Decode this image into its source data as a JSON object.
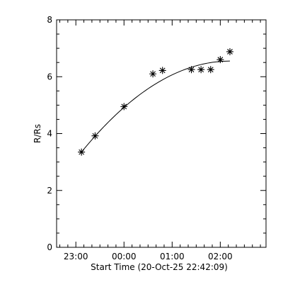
{
  "chart_data": {
    "type": "scatter",
    "xlabel": "Start Time (20-Oct-25 22:42:09)",
    "ylabel": "R/Rs",
    "xlim": [
      "22:36",
      "02:57"
    ],
    "ylim": [
      0,
      8
    ],
    "x_ticks": [
      "23:00",
      "00:00",
      "01:00",
      "02:00"
    ],
    "y_ticks": [
      "0",
      "2",
      "4",
      "6",
      "8"
    ],
    "grid": false,
    "legend": "none",
    "series": [
      {
        "marker": "asterisk",
        "x": [
          "23:07",
          "23:24",
          "00:00",
          "00:36",
          "00:48",
          "01:24",
          "01:36",
          "01:48",
          "02:00",
          "02:12"
        ],
        "y": [
          3.35,
          3.92,
          4.95,
          6.1,
          6.22,
          6.25,
          6.25,
          6.25,
          6.6,
          6.88
        ]
      },
      {
        "style": "line",
        "fit": "quadratic",
        "x": [
          "23:07",
          "02:12"
        ],
        "y": [
          3.35,
          6.55
        ]
      }
    ]
  }
}
